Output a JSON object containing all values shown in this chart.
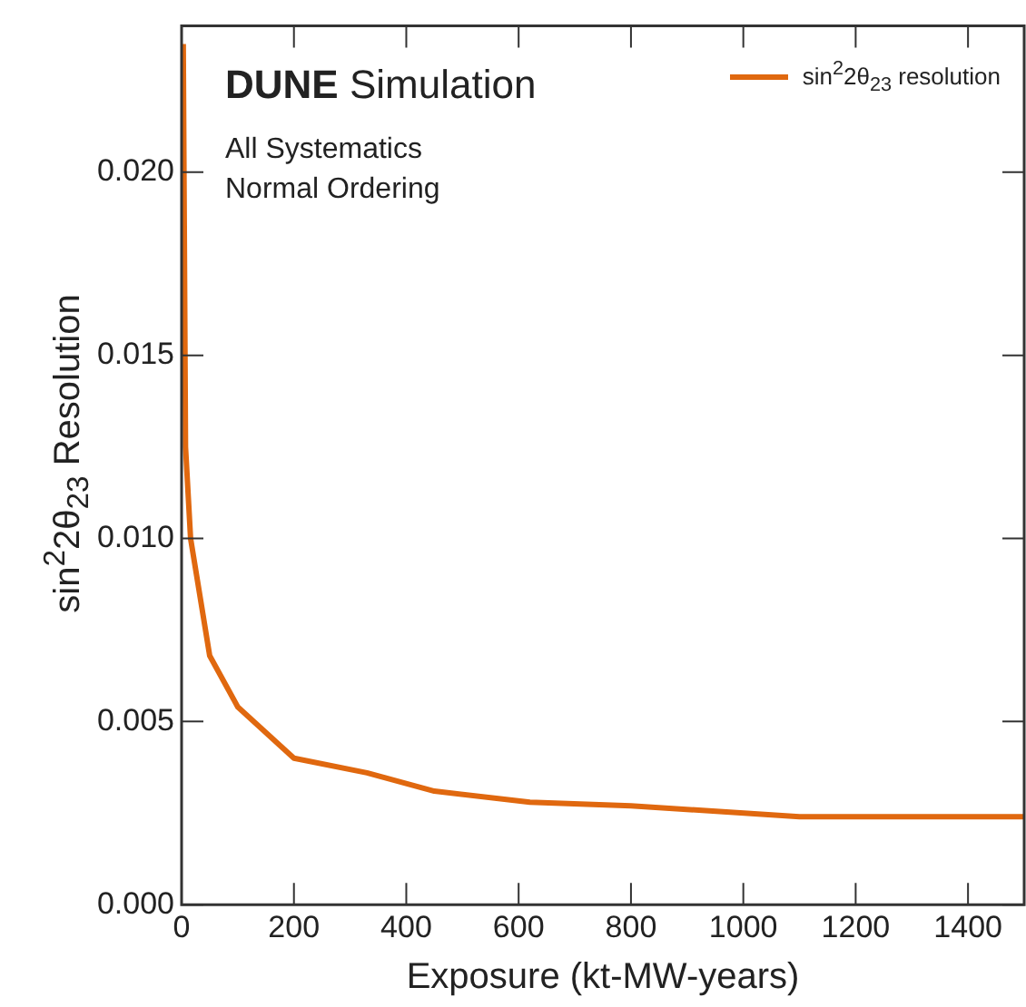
{
  "chart_data": {
    "type": "line",
    "xlabel": "Exposure (kt-MW-years)",
    "ylabel": "sin$^{2}$2θ$_{23}$ Resolution",
    "annotations": [
      "DUNE Simulation",
      "All Systematics",
      "Normal Ordering"
    ],
    "x": [
      3,
      7,
      16,
      50,
      100,
      200,
      330,
      450,
      620,
      800,
      1100,
      1500
    ],
    "series": [
      {
        "name": "sin$^{2}$2θ$_{23}$ resolution",
        "color": "#e0680f",
        "values": [
          0.0235,
          0.0125,
          0.01,
          0.0068,
          0.0054,
          0.004,
          0.0036,
          0.0031,
          0.0028,
          0.0027,
          0.0024,
          0.0024
        ]
      }
    ],
    "xlim": [
      0,
      1500
    ],
    "xticks": [
      0,
      200,
      400,
      600,
      800,
      1000,
      1200,
      1400
    ],
    "ylim": [
      0,
      0.024
    ],
    "yticks": [
      {
        "value": 0,
        "label": "0.000"
      },
      {
        "value": 0.005,
        "label": "0.005"
      },
      {
        "value": 0.01,
        "label": "0.010"
      },
      {
        "value": 0.015,
        "label": "0.015"
      },
      {
        "value": 0.02,
        "label": "0.020"
      }
    ],
    "grid": false,
    "legend": "top right",
    "marker": "none",
    "line_style": "solid"
  }
}
